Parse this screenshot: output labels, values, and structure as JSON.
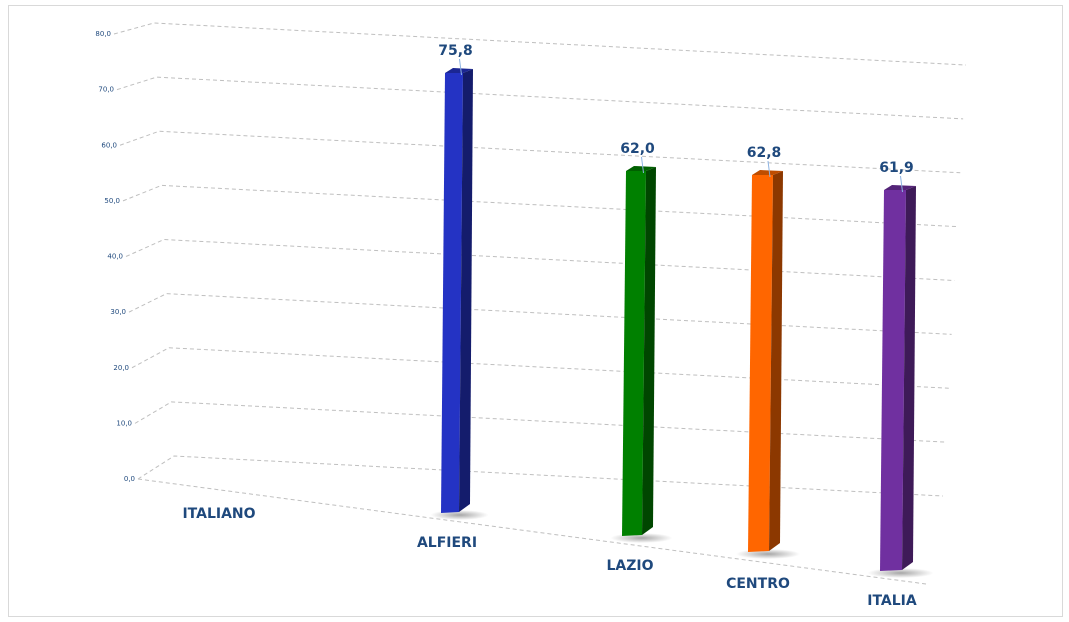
{
  "chart_data": {
    "type": "bar",
    "title": "",
    "xlabel": "",
    "ylabel": "",
    "ylim": [
      0,
      80
    ],
    "yticks": [
      "0,0",
      "10,0",
      "20,0",
      "30,0",
      "40,0",
      "50,0",
      "60,0",
      "70,0",
      "80,0"
    ],
    "grid": true,
    "categories": [
      "ITALIANO",
      "ALFIERI",
      "LAZIO",
      "CENTRO",
      "ITALIA"
    ],
    "values": [
      null,
      75.8,
      62.0,
      62.8,
      61.9
    ],
    "value_labels": [
      "",
      "75,8",
      "62,0",
      "62,8",
      "61,9"
    ],
    "colors": [
      "#2f3fbf",
      "#2433c4",
      "#008000",
      "#ff6600",
      "#7030a0"
    ]
  }
}
